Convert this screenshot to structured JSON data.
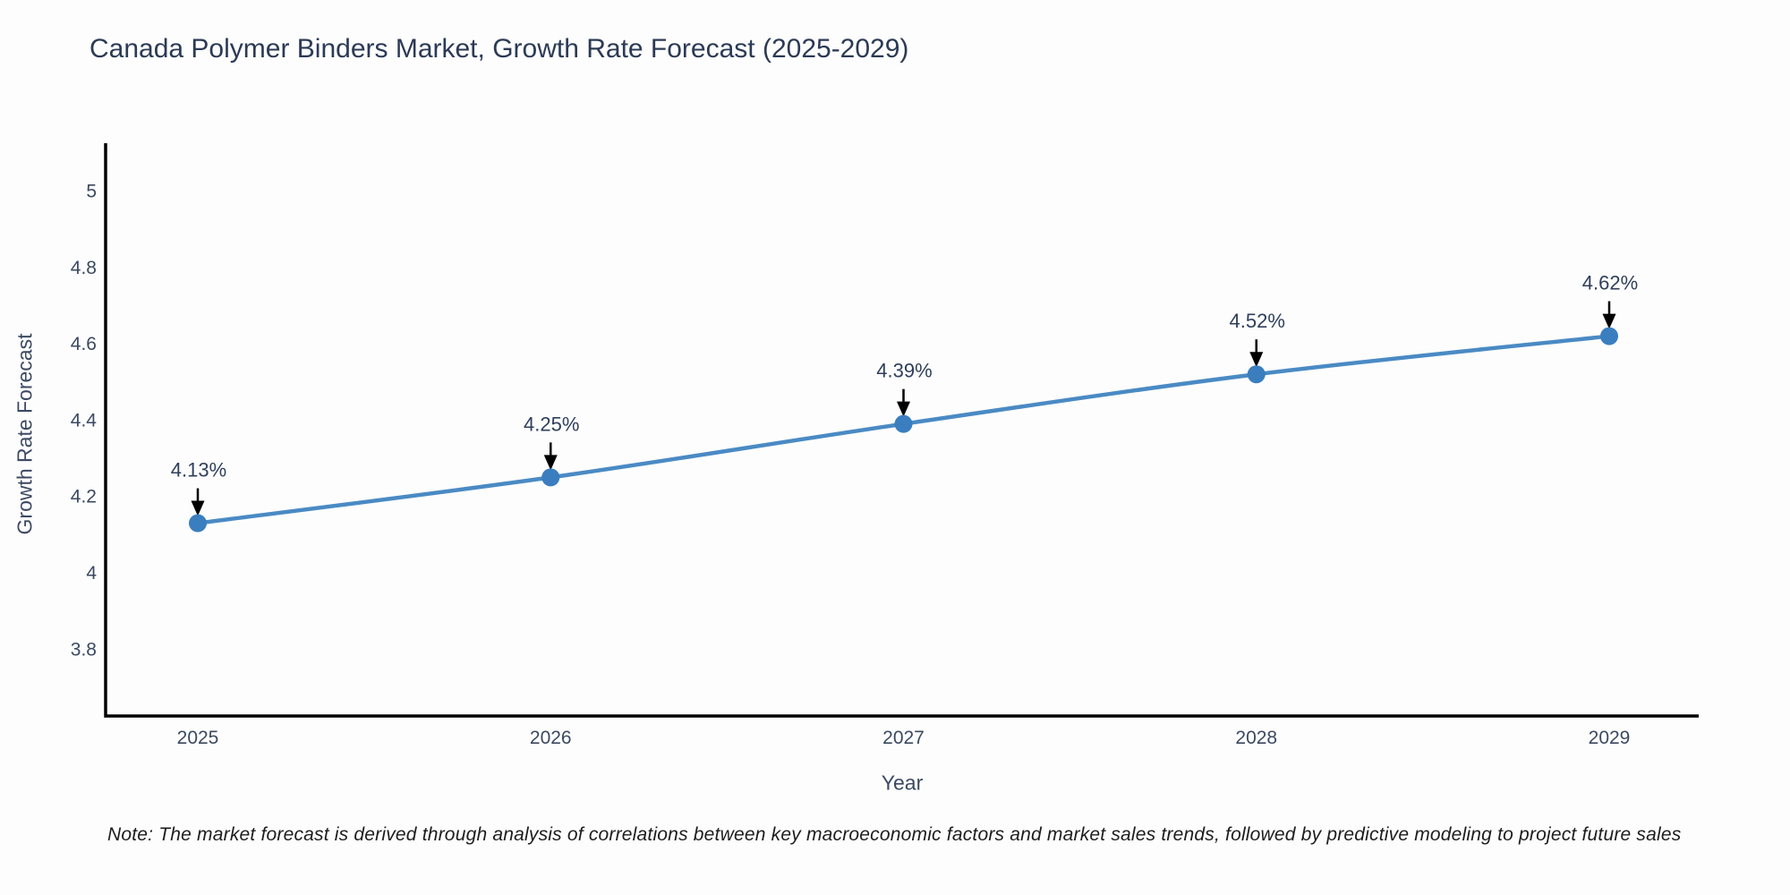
{
  "title": "Canada Polymer Binders Market, Growth Rate Forecast (2025-2029)",
  "note": "Note: The market forecast is derived through analysis of correlations between key macroeconomic factors and market sales trends, followed by predictive modeling to project future sales",
  "colors": {
    "line": "#4a8ac4",
    "marker": "#3a7ebf",
    "axis_line": "#000000",
    "title_text": "#2b3a55",
    "tick_text": "#3c4961",
    "annotation_text": "#2f3f5c",
    "arrow": "#000000",
    "background": "#fdfdfd"
  },
  "chart_data": {
    "type": "line",
    "title": "Canada Polymer Binders Market, Growth Rate Forecast (2025-2029)",
    "xlabel": "Year",
    "ylabel": "Growth Rate Forecast",
    "x": [
      2025,
      2026,
      2027,
      2028,
      2029
    ],
    "y": [
      4.13,
      4.25,
      4.39,
      4.52,
      4.62
    ],
    "point_labels": [
      "4.13%",
      "4.25%",
      "4.39%",
      "4.52%",
      "4.62%"
    ],
    "x_tick_labels": [
      "2025",
      "2026",
      "2027",
      "2028",
      "2029"
    ],
    "y_tick_labels": [
      "3.8",
      "4",
      "4.2",
      "4.4",
      "4.6",
      "4.8",
      "5"
    ],
    "y_tick_values": [
      3.8,
      4.0,
      4.2,
      4.4,
      4.6,
      4.8,
      5.0
    ],
    "xlim": [
      2024.74,
      2029.25
    ],
    "ylim": [
      3.62,
      5.12
    ],
    "grid": false,
    "legend": "none",
    "annotations_have_arrows": true
  }
}
